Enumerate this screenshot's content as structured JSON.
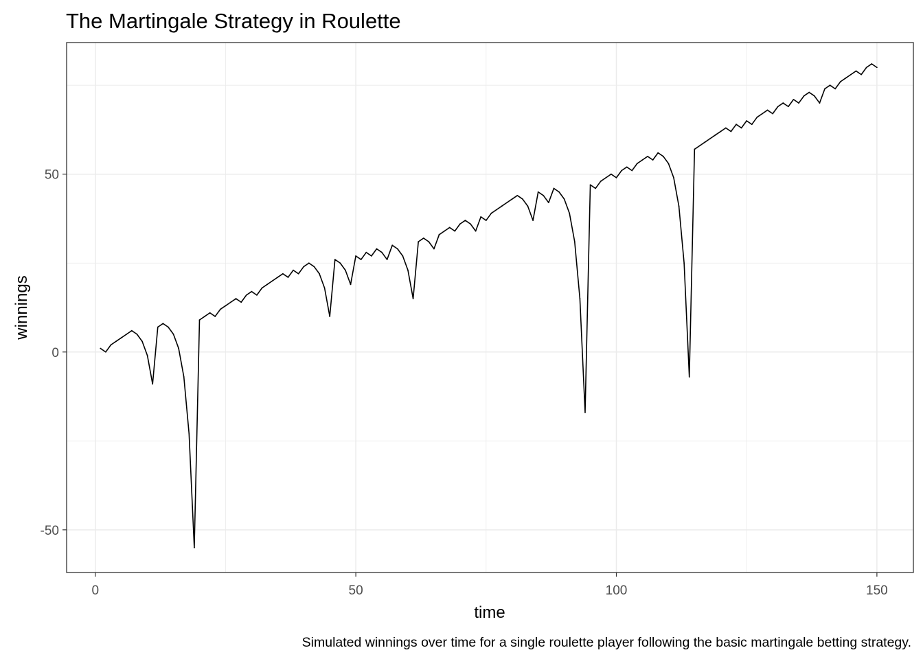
{
  "chart_data": {
    "type": "line",
    "title": "The Martingale Strategy in Roulette",
    "xlabel": "time",
    "ylabel": "winnings",
    "caption": "Simulated winnings over time for a single roulette player following the basic martingale betting strategy.",
    "xlim": [
      -5.5,
      157
    ],
    "ylim": [
      -62,
      87
    ],
    "x_ticks": [
      0,
      50,
      100,
      150
    ],
    "x_tick_labels": [
      "0",
      "50",
      "100",
      "150"
    ],
    "y_ticks": [
      -50,
      0,
      50
    ],
    "y_tick_labels": [
      "-50",
      "0",
      "50"
    ],
    "x_minor_ticks": [
      25,
      75,
      125
    ],
    "y_minor_ticks": [
      -25,
      25,
      75
    ],
    "grid": true,
    "line_color": "#000000",
    "grid_color": "#ebebeb",
    "x": [
      1,
      2,
      3,
      4,
      5,
      6,
      7,
      8,
      9,
      10,
      11,
      12,
      13,
      14,
      15,
      16,
      17,
      18,
      19,
      20,
      21,
      22,
      23,
      24,
      25,
      26,
      27,
      28,
      29,
      30,
      31,
      32,
      33,
      34,
      35,
      36,
      37,
      38,
      39,
      40,
      41,
      42,
      43,
      44,
      45,
      46,
      47,
      48,
      49,
      50,
      51,
      52,
      53,
      54,
      55,
      56,
      57,
      58,
      59,
      60,
      61,
      62,
      63,
      64,
      65,
      66,
      67,
      68,
      69,
      70,
      71,
      72,
      73,
      74,
      75,
      76,
      77,
      78,
      79,
      80,
      81,
      82,
      83,
      84,
      85,
      86,
      87,
      88,
      89,
      90,
      91,
      92,
      93,
      94,
      95,
      96,
      97,
      98,
      99,
      100,
      101,
      102,
      103,
      104,
      105,
      106,
      107,
      108,
      109,
      110,
      111,
      112,
      113,
      114,
      115,
      116,
      117,
      118,
      119,
      120,
      121,
      122,
      123,
      124,
      125,
      126,
      127,
      128,
      129,
      130,
      131,
      132,
      133,
      134,
      135,
      136,
      137,
      138,
      139,
      140,
      141,
      142,
      143,
      144,
      145,
      146,
      147,
      148,
      149,
      150
    ],
    "values": [
      1,
      0,
      2,
      3,
      4,
      5,
      6,
      5,
      3,
      -1,
      -9,
      7,
      8,
      7,
      5,
      1,
      -7,
      -23,
      -55,
      9,
      10,
      11,
      10,
      12,
      13,
      14,
      15,
      14,
      16,
      17,
      16,
      18,
      19,
      20,
      21,
      22,
      21,
      23,
      22,
      24,
      25,
      24,
      22,
      18,
      10,
      26,
      25,
      23,
      19,
      27,
      26,
      28,
      27,
      29,
      28,
      26,
      30,
      29,
      27,
      23,
      15,
      31,
      32,
      31,
      29,
      33,
      34,
      35,
      34,
      36,
      37,
      36,
      34,
      38,
      37,
      39,
      40,
      41,
      42,
      43,
      44,
      43,
      41,
      37,
      45,
      44,
      42,
      46,
      45,
      43,
      39,
      31,
      15,
      -17,
      47,
      46,
      48,
      49,
      50,
      49,
      51,
      52,
      51,
      53,
      54,
      55,
      54,
      56,
      55,
      53,
      49,
      41,
      25,
      -7,
      57,
      58,
      59,
      60,
      61,
      62,
      63,
      62,
      64,
      63,
      65,
      64,
      66,
      67,
      68,
      67,
      69,
      70,
      69,
      71,
      70,
      72,
      73,
      72,
      70,
      74,
      75,
      74,
      76,
      77,
      78,
      79,
      78,
      80,
      81,
      80
    ]
  }
}
